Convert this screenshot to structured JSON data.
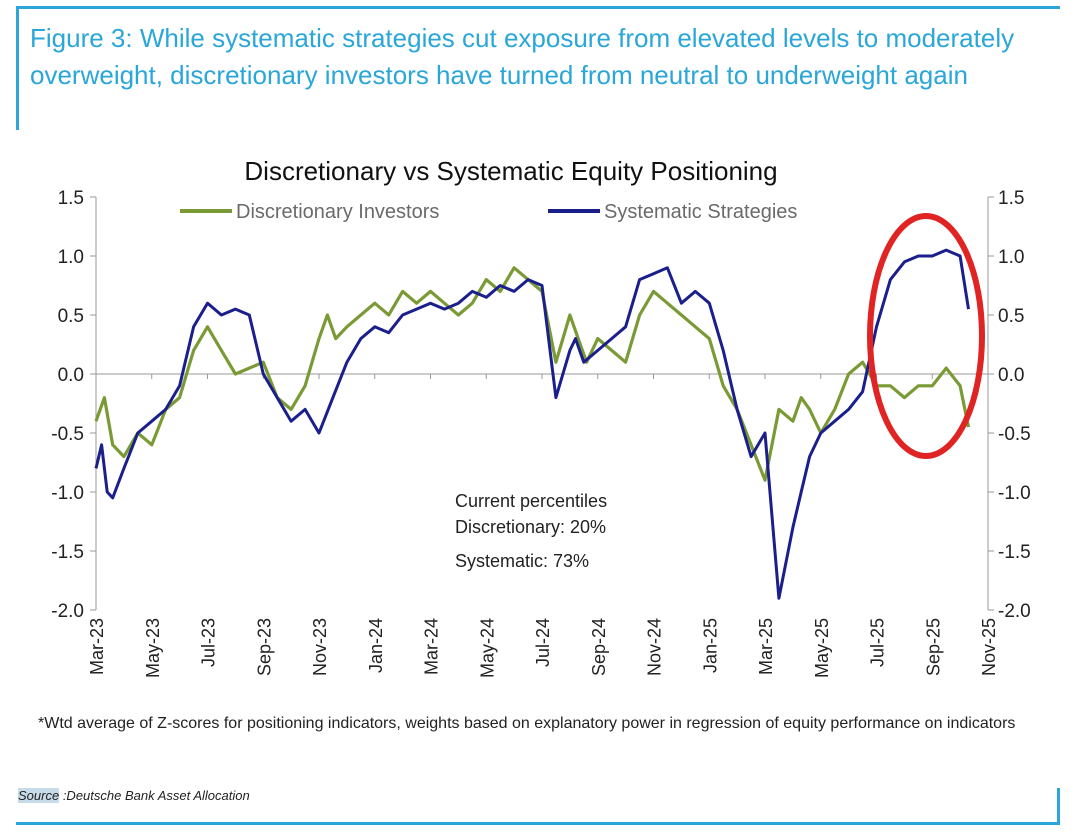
{
  "figure": {
    "title": "Figure 3: While systematic strategies cut exposure from elevated levels to moderately overweight, discretionary investors have turned from neutral to underweight again",
    "footnote": "*Wtd average of Z-scores for positioning indicators, weights based on explanatory power in regression of equity performance on indicators",
    "source_label": "Source",
    "source_text": " :Deutsche Bank Asset Allocation"
  },
  "annotation": {
    "heading": "Current percentiles",
    "line1": "Discretionary: 20%",
    "line2": "Systematic: 73%"
  },
  "colors": {
    "title": "#2aa6d9",
    "discretionary": "#7a9a35",
    "systematic": "#1a1f8c",
    "highlight_ellipse": "#e02424"
  },
  "chart_data": {
    "type": "line",
    "title": "Discretionary  vs Systematic Equity Positioning",
    "xlabel": "",
    "ylabel": "",
    "ylim": [
      -2.0,
      1.5
    ],
    "yticks": [
      1.5,
      1.0,
      0.5,
      0.0,
      -0.5,
      -1.0,
      -1.5,
      -2.0
    ],
    "ytick_labels": [
      "1.5",
      "1.0",
      "0.5",
      "0.0",
      "-0.5",
      "-1.0",
      "-1.5",
      "-2.0"
    ],
    "x_unit": "months since Mar-2023",
    "xlim": [
      0,
      32
    ],
    "xticks": [
      0,
      2,
      4,
      6,
      8,
      10,
      12,
      14,
      16,
      18,
      20,
      22,
      24,
      26,
      28,
      30,
      32
    ],
    "xtick_labels": [
      "Mar-23",
      "May-23",
      "Jul-23",
      "Sep-23",
      "Nov-23",
      "Jan-24",
      "Mar-24",
      "May-24",
      "Jul-24",
      "Sep-24",
      "Nov-24",
      "Jan-25",
      "Mar-25",
      "May-25",
      "Jul-25",
      "Sep-25",
      "Nov-25"
    ],
    "legend_position": "top-center",
    "series": [
      {
        "name": "Discretionary Investors",
        "color": "#7a9a35",
        "x": [
          0,
          0.3,
          0.6,
          1,
          1.5,
          2,
          2.5,
          3,
          3.5,
          4,
          4.5,
          5,
          5.5,
          6,
          6.5,
          7,
          7.5,
          8,
          8.3,
          8.6,
          9,
          9.5,
          10,
          10.5,
          11,
          11.5,
          12,
          12.5,
          13,
          13.5,
          14,
          14.5,
          15,
          15.5,
          16,
          16.5,
          17,
          17.3,
          17.6,
          18,
          18.5,
          19,
          19.5,
          20,
          20.5,
          21,
          21.5,
          22,
          22.5,
          23,
          23.5,
          24,
          24.5,
          25,
          25.3,
          25.6,
          26,
          26.5,
          27,
          27.5,
          28,
          28.5,
          29,
          29.5,
          30,
          30.5,
          31,
          31.3
        ],
        "values": [
          -0.4,
          -0.2,
          -0.6,
          -0.7,
          -0.5,
          -0.6,
          -0.3,
          -0.2,
          0.2,
          0.4,
          0.2,
          0.0,
          0.05,
          0.1,
          -0.2,
          -0.3,
          -0.1,
          0.3,
          0.5,
          0.3,
          0.4,
          0.5,
          0.6,
          0.5,
          0.7,
          0.6,
          0.7,
          0.6,
          0.5,
          0.6,
          0.8,
          0.7,
          0.9,
          0.8,
          0.7,
          0.1,
          0.5,
          0.3,
          0.1,
          0.3,
          0.2,
          0.1,
          0.5,
          0.7,
          0.6,
          0.5,
          0.4,
          0.3,
          -0.1,
          -0.3,
          -0.6,
          -0.9,
          -0.3,
          -0.4,
          -0.2,
          -0.3,
          -0.5,
          -0.3,
          0.0,
          0.1,
          -0.1,
          -0.1,
          -0.2,
          -0.1,
          -0.1,
          0.05,
          -0.1,
          -0.45
        ]
      },
      {
        "name": "Systematic Strategies",
        "color": "#1a1f8c",
        "x": [
          0,
          0.2,
          0.4,
          0.6,
          1,
          1.5,
          2,
          2.5,
          3,
          3.5,
          4,
          4.5,
          5,
          5.5,
          6,
          6.5,
          7,
          7.5,
          8,
          8.5,
          9,
          9.5,
          10,
          10.5,
          11,
          11.5,
          12,
          12.5,
          13,
          13.5,
          14,
          14.5,
          15,
          15.5,
          16,
          16.5,
          17,
          17.2,
          17.5,
          18,
          18.5,
          19,
          19.5,
          20,
          20.5,
          21,
          21.5,
          22,
          22.5,
          23,
          23.5,
          24,
          24.5,
          25,
          25.3,
          25.6,
          26,
          26.5,
          27,
          27.5,
          28,
          28.5,
          29,
          29.5,
          30,
          30.5,
          31,
          31.3
        ],
        "values": [
          -0.8,
          -0.6,
          -1.0,
          -1.05,
          -0.8,
          -0.5,
          -0.4,
          -0.3,
          -0.1,
          0.4,
          0.6,
          0.5,
          0.55,
          0.5,
          0.0,
          -0.2,
          -0.4,
          -0.3,
          -0.5,
          -0.2,
          0.1,
          0.3,
          0.4,
          0.35,
          0.5,
          0.55,
          0.6,
          0.55,
          0.6,
          0.7,
          0.65,
          0.75,
          0.7,
          0.8,
          0.75,
          -0.2,
          0.2,
          0.3,
          0.1,
          0.2,
          0.3,
          0.4,
          0.8,
          0.85,
          0.9,
          0.6,
          0.7,
          0.6,
          0.2,
          -0.3,
          -0.7,
          -0.5,
          -1.9,
          -1.3,
          -1.0,
          -0.7,
          -0.5,
          -0.4,
          -0.3,
          -0.15,
          0.4,
          0.8,
          0.95,
          1.0,
          1.0,
          1.05,
          1.0,
          0.55
        ]
      }
    ]
  }
}
